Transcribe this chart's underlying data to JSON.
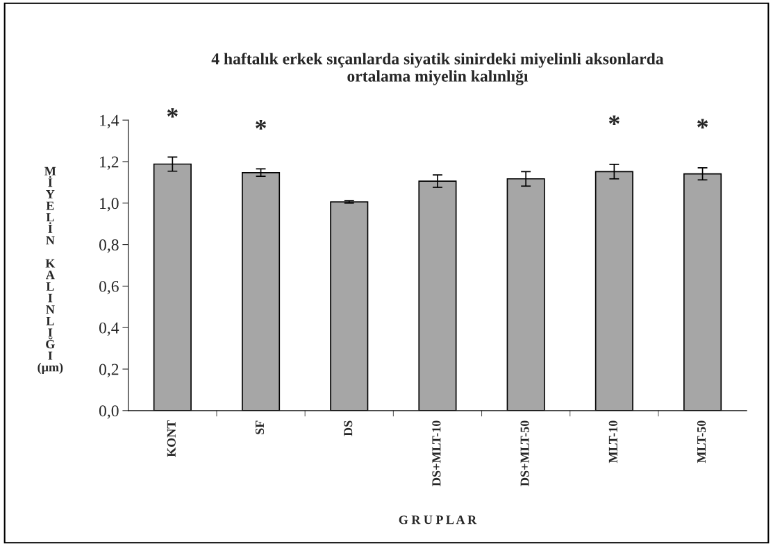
{
  "chart_data": {
    "type": "bar",
    "title": "4 haftalık erkek sıçanlarda siyatik sinirdeki miyelinli aksonlarda\nortalama miyelin kalınlığı",
    "xlabel": "G R U P L A R",
    "ylabel": "MİYELİN KALINLIĞI (µm)",
    "categories": [
      "KONT",
      "SF",
      "DS",
      "DS+MLT-10",
      "DS+MLT-50",
      "MLT-10",
      "MLT-50"
    ],
    "values": [
      1.188,
      1.147,
      1.006,
      1.106,
      1.117,
      1.152,
      1.141
    ],
    "errors": [
      0.034,
      0.018,
      0.006,
      0.03,
      0.035,
      0.035,
      0.029
    ],
    "color": "#a6a6a6",
    "ylim": [
      0,
      1.4
    ],
    "yticks": [
      {
        "value": 0,
        "label": "0,0"
      },
      {
        "value": 0.2,
        "label": "0,2"
      },
      {
        "value": 0.4,
        "label": "0,4"
      },
      {
        "value": 0.6,
        "label": "0,6"
      },
      {
        "value": 0.8,
        "label": "0,8"
      },
      {
        "value": 1.0,
        "label": "1,0"
      },
      {
        "value": 1.2,
        "label": "1,2"
      },
      {
        "value": 1.4,
        "label": "1,4"
      }
    ],
    "value_labels": [
      "*",
      "*",
      null,
      null,
      null,
      "*",
      "*"
    ],
    "grid": false,
    "legend": false
  }
}
